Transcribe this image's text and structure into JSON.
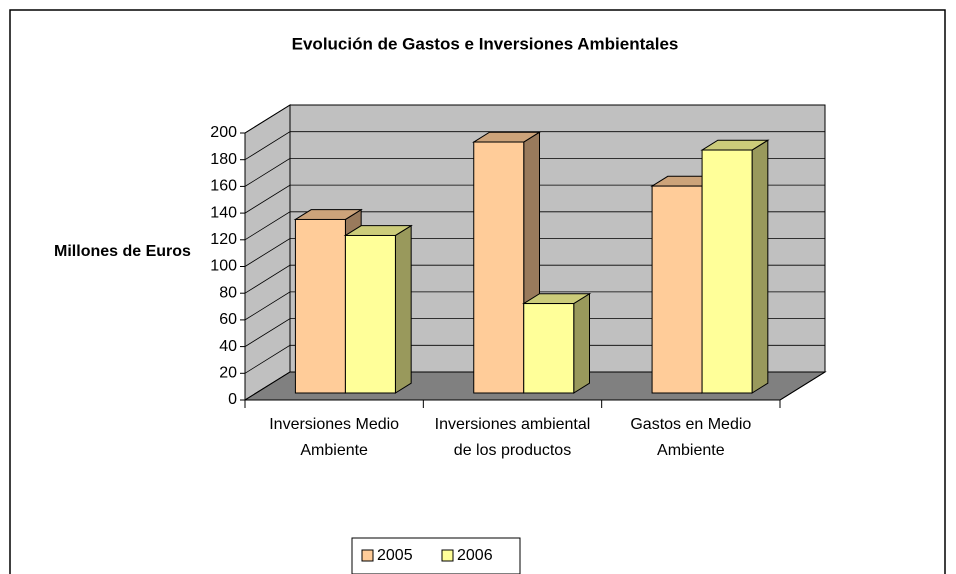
{
  "chart_data": {
    "type": "bar3d",
    "title": "Evolución de Gastos e Inversiones Ambientales",
    "y_label": "Millones de Euros",
    "categories": [
      "Inversiones Medio Ambiente",
      "Inversiones ambiental de los productos",
      "Gastos en Medio Ambiente"
    ],
    "series": [
      {
        "name": "2005",
        "color": "#ffcc99",
        "values": [
          130,
          188,
          155
        ]
      },
      {
        "name": "2006",
        "color": "#ffff99",
        "values": [
          118,
          67,
          182
        ]
      }
    ],
    "ylim": [
      0,
      200
    ],
    "yticks": [
      0,
      20,
      40,
      60,
      80,
      100,
      120,
      140,
      160,
      180,
      200
    ],
    "grid": true,
    "legend": "bottom"
  }
}
